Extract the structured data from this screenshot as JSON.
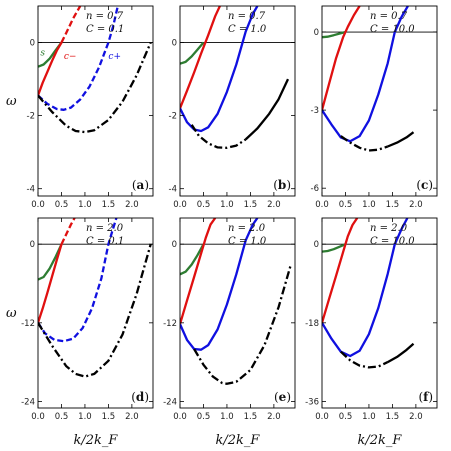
{
  "figure": {
    "xlabel": "k/2k_F",
    "ylabel": "ω"
  },
  "chart_data": [
    {
      "panel": "a",
      "type": "line",
      "annotations": [
        "n = 0.7",
        "C = 0.1"
      ],
      "xlim": [
        0,
        2.45
      ],
      "ylim": [
        -4.2,
        1.0
      ],
      "xticks": [
        "0.0",
        "0.5",
        "1.0",
        "1.5",
        "2.0"
      ],
      "yticks": [
        0,
        -2,
        -4
      ],
      "show_xticklabels": true,
      "curve_labels": [
        "s",
        "c−",
        "c+"
      ],
      "series": [
        {
          "name": "s",
          "color": "#2e7d32",
          "style": "solid",
          "x": [
            0,
            0.12,
            0.25,
            0.37,
            0.5
          ],
          "y": [
            -0.66,
            -0.6,
            -0.44,
            -0.22,
            0
          ]
        },
        {
          "name": "c−",
          "color": "#e01010",
          "style": "solid",
          "x": [
            0,
            0.1,
            0.2,
            0.3,
            0.4,
            0.5
          ],
          "y": [
            -1.45,
            -1.1,
            -0.8,
            -0.5,
            -0.22,
            0
          ]
        },
        {
          "name": "c−",
          "color": "#e01010",
          "style": "dashed",
          "x": [
            0.5,
            0.6,
            0.75,
            0.9
          ],
          "y": [
            0,
            0.26,
            0.66,
            1.0
          ]
        },
        {
          "name": "c+",
          "color": "#1010e0",
          "style": "dashed",
          "x": [
            0,
            0.2,
            0.4,
            0.55,
            0.7,
            0.9,
            1.1,
            1.3,
            1.5,
            1.6,
            1.7
          ],
          "y": [
            -1.45,
            -1.68,
            -1.82,
            -1.84,
            -1.78,
            -1.56,
            -1.2,
            -0.68,
            0,
            0.44,
            1.0
          ]
        },
        {
          "name": "",
          "color": "#000000",
          "style": "dashdot",
          "x": [
            0,
            0.3,
            0.6,
            0.8,
            1.0,
            1.2,
            1.5,
            1.8,
            2.1,
            2.4
          ],
          "y": [
            -1.45,
            -1.9,
            -2.28,
            -2.42,
            -2.45,
            -2.4,
            -2.12,
            -1.62,
            -0.9,
            0.0
          ]
        }
      ]
    },
    {
      "panel": "b",
      "type": "line",
      "annotations": [
        "n = 0.7",
        "C = 1.0"
      ],
      "xlim": [
        0,
        2.45
      ],
      "ylim": [
        -4.2,
        1.0
      ],
      "xticks": [
        "0.0",
        "0.5",
        "1.0",
        "1.5",
        "2.0"
      ],
      "yticks": [
        0,
        -2,
        -4
      ],
      "show_xticklabels": true,
      "series": [
        {
          "name": "",
          "color": "#2e7d32",
          "style": "solid",
          "x": [
            0,
            0.12,
            0.25,
            0.37,
            0.5
          ],
          "y": [
            -0.58,
            -0.53,
            -0.38,
            -0.2,
            0
          ]
        },
        {
          "name": "",
          "color": "#e01010",
          "style": "solid",
          "x": [
            0,
            0.15,
            0.3,
            0.45,
            0.6,
            0.75,
            0.85
          ],
          "y": [
            -1.8,
            -1.32,
            -0.82,
            -0.3,
            0.2,
            0.72,
            1.0
          ]
        },
        {
          "name": "",
          "color": "#1010e0",
          "style": "solid",
          "x": [
            0,
            0.15,
            0.3,
            0.45,
            0.6,
            0.8,
            1.0,
            1.2,
            1.4,
            1.55,
            1.65
          ],
          "y": [
            -1.8,
            -2.18,
            -2.38,
            -2.42,
            -2.32,
            -1.95,
            -1.35,
            -0.6,
            0.3,
            0.78,
            1.0
          ]
        },
        {
          "name": "",
          "color": "#000000",
          "style": "dashdot",
          "x": [
            0.25,
            0.4,
            0.6,
            0.8,
            1.0,
            1.2,
            1.4
          ],
          "y": [
            -2.25,
            -2.55,
            -2.76,
            -2.87,
            -2.88,
            -2.82,
            -2.65
          ]
        },
        {
          "name": "",
          "color": "#000000",
          "style": "solid",
          "x": [
            1.4,
            1.65,
            1.9,
            2.1,
            2.3
          ],
          "y": [
            -2.65,
            -2.35,
            -1.95,
            -1.55,
            -1.0
          ]
        }
      ]
    },
    {
      "panel": "c",
      "type": "line",
      "annotations": [
        "n = 0.7",
        "C = 10.0"
      ],
      "xlim": [
        0,
        2.45
      ],
      "ylim": [
        -6.3,
        1.0
      ],
      "xticks": [
        "0.0",
        "0.5",
        "1.0",
        "1.5",
        "2.0"
      ],
      "yticks": [
        0,
        -3,
        -6
      ],
      "show_xticklabels": true,
      "series": [
        {
          "name": "",
          "color": "#2e7d32",
          "style": "solid",
          "x": [
            0,
            0.12,
            0.25,
            0.37,
            0.5
          ],
          "y": [
            -0.2,
            -0.18,
            -0.12,
            -0.06,
            0
          ]
        },
        {
          "name": "",
          "color": "#e01010",
          "style": "solid",
          "x": [
            0,
            0.15,
            0.3,
            0.45,
            0.55,
            0.68,
            0.8
          ],
          "y": [
            -3.0,
            -2.0,
            -1.0,
            -0.2,
            0.2,
            0.65,
            1.0
          ]
        },
        {
          "name": "",
          "color": "#1010e0",
          "style": "solid",
          "x": [
            0,
            0.2,
            0.4,
            0.6,
            0.8,
            1.0,
            1.2,
            1.4,
            1.55,
            1.7,
            1.83
          ],
          "y": [
            -3.0,
            -3.55,
            -4.05,
            -4.2,
            -4.0,
            -3.4,
            -2.4,
            -1.2,
            0,
            0.6,
            1.0
          ]
        },
        {
          "name": "",
          "color": "#000000",
          "style": "dashdot",
          "x": [
            0.4,
            0.6,
            0.8,
            1.0,
            1.2,
            1.4
          ],
          "y": [
            -4.0,
            -4.25,
            -4.45,
            -4.55,
            -4.52,
            -4.4
          ]
        },
        {
          "name": "",
          "color": "#000000",
          "style": "solid",
          "x": [
            1.4,
            1.6,
            1.8,
            1.95
          ],
          "y": [
            -4.4,
            -4.25,
            -4.05,
            -3.85
          ]
        }
      ]
    },
    {
      "panel": "d",
      "type": "line",
      "annotations": [
        "n = 2.0",
        "C = 0.1"
      ],
      "xlim": [
        0,
        2.45
      ],
      "ylim": [
        -25,
        4.0
      ],
      "xticks": [
        "0.0",
        "0.5",
        "1.0",
        "1.5",
        "2.0"
      ],
      "yticks": [
        0,
        -12,
        -24
      ],
      "show_xticklabels": true,
      "series": [
        {
          "name": "",
          "color": "#2e7d32",
          "style": "solid",
          "x": [
            0,
            0.12,
            0.25,
            0.37,
            0.5
          ],
          "y": [
            -5.4,
            -5.0,
            -3.7,
            -2.0,
            0
          ]
        },
        {
          "name": "",
          "color": "#e01010",
          "style": "solid",
          "x": [
            0,
            0.1,
            0.2,
            0.3,
            0.4,
            0.5
          ],
          "y": [
            -12.0,
            -9.8,
            -7.4,
            -4.9,
            -2.4,
            0
          ]
        },
        {
          "name": "",
          "color": "#e01010",
          "style": "dashed",
          "x": [
            0.5,
            0.6,
            0.7,
            0.78
          ],
          "y": [
            0,
            1.5,
            3.0,
            4.0
          ]
        },
        {
          "name": "",
          "color": "#1010e0",
          "style": "dashed",
          "x": [
            0,
            0.15,
            0.35,
            0.55,
            0.75,
            0.95,
            1.15,
            1.35,
            1.5,
            1.6,
            1.67
          ],
          "y": [
            -12.0,
            -13.6,
            -14.6,
            -14.8,
            -14.4,
            -12.8,
            -9.8,
            -5.2,
            0,
            2.4,
            4.0
          ]
        },
        {
          "name": "",
          "color": "#000000",
          "style": "dashdot",
          "x": [
            0,
            0.3,
            0.6,
            0.8,
            1.0,
            1.2,
            1.5,
            1.8,
            2.1,
            2.4
          ],
          "y": [
            -12.0,
            -15.5,
            -18.6,
            -19.8,
            -20.2,
            -19.8,
            -17.8,
            -13.8,
            -7.6,
            0
          ]
        }
      ]
    },
    {
      "panel": "e",
      "type": "line",
      "annotations": [
        "n = 2.0",
        "C = 1.0"
      ],
      "xlim": [
        0,
        2.45
      ],
      "ylim": [
        -25,
        4.0
      ],
      "xticks": [
        "0.0",
        "0.5",
        "1.0",
        "1.5",
        "2.0"
      ],
      "yticks": [
        0,
        -12,
        -24
      ],
      "show_xticklabels": true,
      "series": [
        {
          "name": "",
          "color": "#2e7d32",
          "style": "solid",
          "x": [
            0,
            0.12,
            0.25,
            0.37,
            0.5
          ],
          "y": [
            -4.6,
            -4.2,
            -3.1,
            -1.7,
            0
          ]
        },
        {
          "name": "",
          "color": "#e01010",
          "style": "solid",
          "x": [
            0,
            0.15,
            0.3,
            0.45,
            0.55,
            0.65,
            0.75
          ],
          "y": [
            -12.2,
            -8.6,
            -5.0,
            -1.4,
            1.0,
            3.0,
            4.0
          ]
        },
        {
          "name": "",
          "color": "#1010e0",
          "style": "solid",
          "x": [
            0,
            0.15,
            0.3,
            0.45,
            0.6,
            0.8,
            1.0,
            1.2,
            1.4,
            1.55,
            1.65
          ],
          "y": [
            -12.2,
            -14.6,
            -16.0,
            -16.1,
            -15.4,
            -13.0,
            -9.2,
            -4.6,
            0.6,
            3.0,
            4.0
          ]
        },
        {
          "name": "",
          "color": "#000000",
          "style": "dashdot",
          "x": [
            0.3,
            0.5,
            0.7,
            0.9,
            1.0,
            1.2,
            1.5,
            1.8,
            2.1,
            2.35
          ],
          "y": [
            -16.0,
            -18.4,
            -20.2,
            -21.2,
            -21.3,
            -21.0,
            -19.2,
            -15.4,
            -9.6,
            -3.4
          ]
        }
      ]
    },
    {
      "panel": "f",
      "type": "line",
      "annotations": [
        "n = 2.0",
        "C = 10.0"
      ],
      "xlim": [
        0,
        2.45
      ],
      "ylim": [
        -37.5,
        6.0
      ],
      "xticks": [
        "0.0",
        "0.5",
        "1.0",
        "1.5",
        "2.0"
      ],
      "yticks": [
        0,
        -18,
        -36
      ],
      "show_xticklabels": true,
      "series": [
        {
          "name": "",
          "color": "#2e7d32",
          "style": "solid",
          "x": [
            0,
            0.12,
            0.25,
            0.37,
            0.5
          ],
          "y": [
            -1.7,
            -1.55,
            -1.15,
            -0.6,
            0
          ]
        },
        {
          "name": "",
          "color": "#e01010",
          "style": "solid",
          "x": [
            0,
            0.15,
            0.3,
            0.45,
            0.55,
            0.65,
            0.75
          ],
          "y": [
            -18.0,
            -12.6,
            -7.2,
            -1.8,
            1.8,
            4.4,
            6.0
          ]
        },
        {
          "name": "",
          "color": "#1010e0",
          "style": "solid",
          "x": [
            0,
            0.2,
            0.4,
            0.6,
            0.8,
            1.0,
            1.2,
            1.4,
            1.55,
            1.7,
            1.82
          ],
          "y": [
            -18.0,
            -21.6,
            -24.6,
            -25.6,
            -24.4,
            -20.6,
            -14.6,
            -6.8,
            0,
            3.6,
            6.0
          ]
        },
        {
          "name": "",
          "color": "#000000",
          "style": "dashdot",
          "x": [
            0.4,
            0.6,
            0.8,
            1.0,
            1.2,
            1.4
          ],
          "y": [
            -24.6,
            -26.6,
            -27.8,
            -28.2,
            -28.0,
            -27.0
          ]
        },
        {
          "name": "",
          "color": "#000000",
          "style": "solid",
          "x": [
            1.4,
            1.6,
            1.8,
            1.95
          ],
          "y": [
            -27.0,
            -25.8,
            -24.2,
            -22.8
          ]
        }
      ]
    }
  ]
}
